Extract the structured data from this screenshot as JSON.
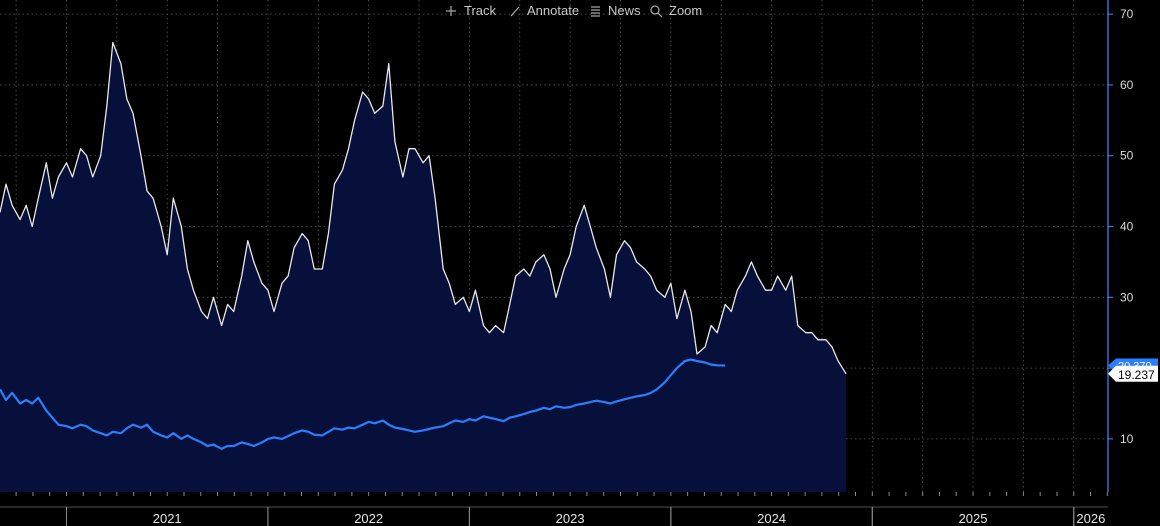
{
  "toolbar": {
    "track_label": "Track",
    "annotate_label": "Annotate",
    "news_label": "News",
    "zoom_label": "Zoom"
  },
  "colors": {
    "background": "#000000",
    "area_fill": "#07103a",
    "series1_line": "#e8e8e8",
    "series2_line": "#2a7fff",
    "grid": "#5a5a5a",
    "axis": "#3b8cff"
  },
  "chart_data": {
    "type": "line",
    "x_unit": "year (decimal)",
    "xlim": [
      2020.67,
      2026.17
    ],
    "ylim": [
      2.5,
      72
    ],
    "y_ticks": [
      10,
      20,
      30,
      40,
      50,
      60,
      70
    ],
    "x_tick_labels": [
      "2021",
      "2022",
      "2023",
      "2024",
      "2025",
      "2026"
    ],
    "grid": true,
    "series": [
      {
        "last_value_label": "19.237",
        "style": "area",
        "points": [
          [
            2020.67,
            42
          ],
          [
            2020.7,
            46
          ],
          [
            2020.73,
            43
          ],
          [
            2020.77,
            41
          ],
          [
            2020.8,
            43
          ],
          [
            2020.83,
            40
          ],
          [
            2020.86,
            44
          ],
          [
            2020.9,
            49
          ],
          [
            2020.93,
            44
          ],
          [
            2020.96,
            47
          ],
          [
            2021.0,
            49
          ],
          [
            2021.03,
            47
          ],
          [
            2021.07,
            51
          ],
          [
            2021.1,
            50
          ],
          [
            2021.13,
            47
          ],
          [
            2021.17,
            50
          ],
          [
            2021.2,
            57
          ],
          [
            2021.23,
            66
          ],
          [
            2021.27,
            63
          ],
          [
            2021.3,
            58
          ],
          [
            2021.33,
            56
          ],
          [
            2021.37,
            50
          ],
          [
            2021.4,
            45
          ],
          [
            2021.43,
            44
          ],
          [
            2021.47,
            40
          ],
          [
            2021.5,
            36
          ],
          [
            2021.53,
            44
          ],
          [
            2021.57,
            40
          ],
          [
            2021.6,
            34
          ],
          [
            2021.63,
            31
          ],
          [
            2021.67,
            28
          ],
          [
            2021.7,
            27
          ],
          [
            2021.73,
            30
          ],
          [
            2021.77,
            26
          ],
          [
            2021.8,
            29
          ],
          [
            2021.83,
            28
          ],
          [
            2021.87,
            33
          ],
          [
            2021.9,
            38
          ],
          [
            2021.93,
            35
          ],
          [
            2021.97,
            32
          ],
          [
            2022.0,
            31
          ],
          [
            2022.03,
            28
          ],
          [
            2022.07,
            32
          ],
          [
            2022.1,
            33
          ],
          [
            2022.13,
            37
          ],
          [
            2022.17,
            39
          ],
          [
            2022.2,
            38
          ],
          [
            2022.23,
            34
          ],
          [
            2022.27,
            34
          ],
          [
            2022.3,
            39
          ],
          [
            2022.33,
            46
          ],
          [
            2022.37,
            48
          ],
          [
            2022.4,
            51
          ],
          [
            2022.43,
            55
          ],
          [
            2022.47,
            59
          ],
          [
            2022.5,
            58
          ],
          [
            2022.53,
            56
          ],
          [
            2022.57,
            57
          ],
          [
            2022.6,
            63
          ],
          [
            2022.63,
            52
          ],
          [
            2022.67,
            47
          ],
          [
            2022.7,
            51
          ],
          [
            2022.73,
            51
          ],
          [
            2022.77,
            49
          ],
          [
            2022.8,
            50
          ],
          [
            2022.83,
            44
          ],
          [
            2022.87,
            34
          ],
          [
            2022.9,
            32
          ],
          [
            2022.93,
            29
          ],
          [
            2022.97,
            30
          ],
          [
            2023.0,
            28
          ],
          [
            2023.03,
            31
          ],
          [
            2023.07,
            26
          ],
          [
            2023.1,
            25
          ],
          [
            2023.13,
            26
          ],
          [
            2023.17,
            25
          ],
          [
            2023.2,
            29
          ],
          [
            2023.23,
            33
          ],
          [
            2023.27,
            34
          ],
          [
            2023.3,
            33
          ],
          [
            2023.33,
            35
          ],
          [
            2023.37,
            36
          ],
          [
            2023.4,
            34
          ],
          [
            2023.43,
            30
          ],
          [
            2023.47,
            34
          ],
          [
            2023.5,
            36
          ],
          [
            2023.53,
            40
          ],
          [
            2023.57,
            43
          ],
          [
            2023.6,
            40
          ],
          [
            2023.63,
            37
          ],
          [
            2023.67,
            34
          ],
          [
            2023.7,
            30
          ],
          [
            2023.73,
            36
          ],
          [
            2023.77,
            38
          ],
          [
            2023.8,
            37
          ],
          [
            2023.83,
            35
          ],
          [
            2023.87,
            34
          ],
          [
            2023.9,
            33
          ],
          [
            2023.93,
            31
          ],
          [
            2023.97,
            30
          ],
          [
            2024.0,
            32
          ],
          [
            2024.03,
            27
          ],
          [
            2024.07,
            31
          ],
          [
            2024.1,
            28
          ],
          [
            2024.13,
            22
          ],
          [
            2024.17,
            23
          ],
          [
            2024.2,
            26
          ],
          [
            2024.23,
            25
          ],
          [
            2024.27,
            29
          ],
          [
            2024.3,
            28
          ],
          [
            2024.33,
            31
          ],
          [
            2024.37,
            33
          ],
          [
            2024.4,
            35
          ],
          [
            2024.43,
            33
          ],
          [
            2024.47,
            31
          ],
          [
            2024.5,
            31
          ],
          [
            2024.53,
            33
          ],
          [
            2024.57,
            31
          ],
          [
            2024.6,
            33
          ],
          [
            2024.63,
            26
          ],
          [
            2024.67,
            25
          ],
          [
            2024.7,
            25
          ],
          [
            2024.73,
            24
          ],
          [
            2024.77,
            24
          ],
          [
            2024.8,
            23
          ],
          [
            2024.83,
            21
          ],
          [
            2024.87,
            19.2
          ]
        ]
      },
      {
        "last_value_label": "20.370",
        "style": "line",
        "points": [
          [
            2020.67,
            17
          ],
          [
            2020.7,
            15.5
          ],
          [
            2020.73,
            16.5
          ],
          [
            2020.77,
            15
          ],
          [
            2020.8,
            15.5
          ],
          [
            2020.83,
            15
          ],
          [
            2020.86,
            15.8
          ],
          [
            2020.9,
            14
          ],
          [
            2020.93,
            13
          ],
          [
            2020.96,
            12
          ],
          [
            2021.0,
            11.8
          ],
          [
            2021.03,
            11.5
          ],
          [
            2021.07,
            12
          ],
          [
            2021.1,
            11.8
          ],
          [
            2021.13,
            11.2
          ],
          [
            2021.17,
            10.8
          ],
          [
            2021.2,
            10.5
          ],
          [
            2021.23,
            11
          ],
          [
            2021.27,
            10.8
          ],
          [
            2021.3,
            11.5
          ],
          [
            2021.33,
            12
          ],
          [
            2021.37,
            11.6
          ],
          [
            2021.4,
            12
          ],
          [
            2021.43,
            11
          ],
          [
            2021.47,
            10.5
          ],
          [
            2021.5,
            10.2
          ],
          [
            2021.53,
            10.8
          ],
          [
            2021.57,
            10
          ],
          [
            2021.6,
            10.5
          ],
          [
            2021.63,
            10
          ],
          [
            2021.67,
            9.5
          ],
          [
            2021.7,
            9
          ],
          [
            2021.73,
            9.2
          ],
          [
            2021.77,
            8.6
          ],
          [
            2021.8,
            9
          ],
          [
            2021.83,
            9
          ],
          [
            2021.87,
            9.5
          ],
          [
            2021.9,
            9.3
          ],
          [
            2021.93,
            9
          ],
          [
            2021.97,
            9.5
          ],
          [
            2022.0,
            10
          ],
          [
            2022.03,
            10.2
          ],
          [
            2022.07,
            10
          ],
          [
            2022.1,
            10.4
          ],
          [
            2022.13,
            10.8
          ],
          [
            2022.17,
            11.2
          ],
          [
            2022.2,
            11
          ],
          [
            2022.23,
            10.6
          ],
          [
            2022.27,
            10.5
          ],
          [
            2022.3,
            11
          ],
          [
            2022.33,
            11.5
          ],
          [
            2022.37,
            11.3
          ],
          [
            2022.4,
            11.6
          ],
          [
            2022.43,
            11.5
          ],
          [
            2022.47,
            12
          ],
          [
            2022.5,
            12.4
          ],
          [
            2022.53,
            12.2
          ],
          [
            2022.57,
            12.6
          ],
          [
            2022.6,
            12
          ],
          [
            2022.63,
            11.6
          ],
          [
            2022.67,
            11.4
          ],
          [
            2022.7,
            11.2
          ],
          [
            2022.73,
            11
          ],
          [
            2022.77,
            11.2
          ],
          [
            2022.8,
            11.4
          ],
          [
            2022.83,
            11.6
          ],
          [
            2022.87,
            11.8
          ],
          [
            2022.9,
            12.2
          ],
          [
            2022.93,
            12.6
          ],
          [
            2022.97,
            12.4
          ],
          [
            2023.0,
            12.8
          ],
          [
            2023.03,
            12.6
          ],
          [
            2023.07,
            13.2
          ],
          [
            2023.1,
            13
          ],
          [
            2023.13,
            12.8
          ],
          [
            2023.17,
            12.5
          ],
          [
            2023.2,
            13
          ],
          [
            2023.23,
            13.2
          ],
          [
            2023.27,
            13.5
          ],
          [
            2023.3,
            13.8
          ],
          [
            2023.33,
            14
          ],
          [
            2023.37,
            14.4
          ],
          [
            2023.4,
            14.2
          ],
          [
            2023.43,
            14.6
          ],
          [
            2023.47,
            14.4
          ],
          [
            2023.5,
            14.5
          ],
          [
            2023.53,
            14.8
          ],
          [
            2023.57,
            15
          ],
          [
            2023.6,
            15.2
          ],
          [
            2023.63,
            15.4
          ],
          [
            2023.67,
            15.2
          ],
          [
            2023.7,
            15
          ],
          [
            2023.73,
            15.3
          ],
          [
            2023.77,
            15.6
          ],
          [
            2023.8,
            15.8
          ],
          [
            2023.83,
            16
          ],
          [
            2023.87,
            16.2
          ],
          [
            2023.9,
            16.5
          ],
          [
            2023.93,
            17
          ],
          [
            2023.97,
            18
          ],
          [
            2024.0,
            19
          ],
          [
            2024.03,
            20
          ],
          [
            2024.07,
            21
          ],
          [
            2024.1,
            21.2
          ],
          [
            2024.13,
            21
          ],
          [
            2024.17,
            20.8
          ],
          [
            2024.2,
            20.5
          ],
          [
            2024.23,
            20.4
          ],
          [
            2024.27,
            20.37
          ]
        ]
      }
    ]
  }
}
